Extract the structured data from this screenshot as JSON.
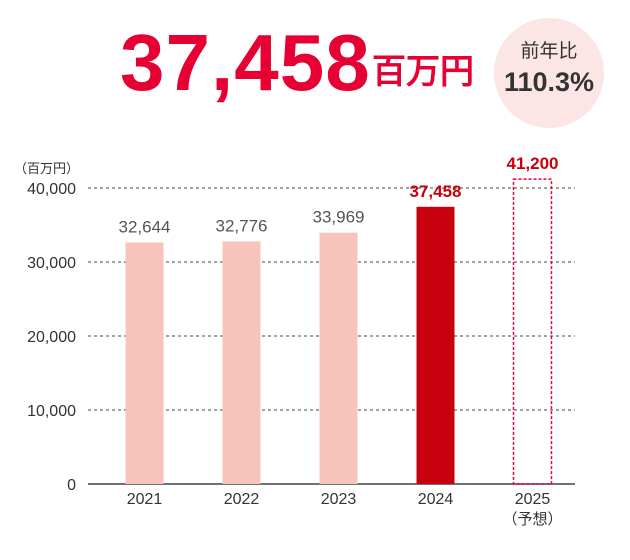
{
  "headline": {
    "value": "37,458",
    "unit": "百万円",
    "yoy_label": "前年比",
    "yoy_value": "110.3%"
  },
  "colors": {
    "accent": "#e60033",
    "bar_light": "#f7c4bc",
    "bar_current": "#c8000e",
    "forecast_outline": "#e60033",
    "text": "#333333",
    "bar_label_gray": "#555555",
    "bar_label_accent": "#c8000e",
    "grid": "#444444"
  },
  "chart_data": {
    "type": "bar",
    "unit_label": "（百万円）",
    "categories": [
      "2021",
      "2022",
      "2023",
      "2024",
      "2025"
    ],
    "category_sublabels": [
      "",
      "",
      "",
      "",
      "（予想）"
    ],
    "values": [
      32644,
      32776,
      33969,
      37458,
      41200
    ],
    "value_labels": [
      "32,644",
      "32,776",
      "33,969",
      "37,458",
      "41,200"
    ],
    "bar_styles": [
      "past",
      "past",
      "past",
      "current",
      "forecast"
    ],
    "ylim": [
      0,
      40000
    ],
    "yticks": [
      0,
      10000,
      20000,
      30000,
      40000
    ],
    "ytick_labels": [
      "0",
      "10,000",
      "20,000",
      "30,000",
      "40,000"
    ],
    "grid": true,
    "grid_style": "dashed"
  }
}
